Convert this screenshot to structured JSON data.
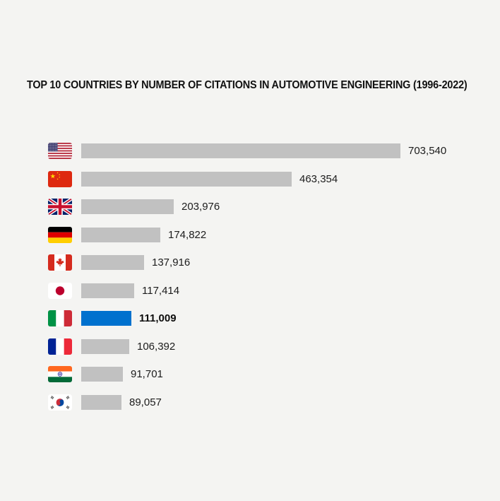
{
  "title": "TOP 10 COUNTRIES BY NUMBER OF CITATIONS IN AUTOMOTIVE ENGINEERING (1996-2022)",
  "colors": {
    "background": "#f4f4f2",
    "bar_default": "#c1c1c1",
    "bar_highlight": "#0071ce",
    "text": "#1c1c1c",
    "text_strong": "#111111"
  },
  "chart_data": {
    "type": "bar",
    "orientation": "horizontal",
    "title": "TOP 10 COUNTRIES BY NUMBER OF CITATIONS IN AUTOMOTIVE ENGINEERING (1996-2022)",
    "categories": [
      "United States",
      "China",
      "United Kingdom",
      "Germany",
      "Canada",
      "Japan",
      "Italy",
      "France",
      "India",
      "South Korea"
    ],
    "values": [
      703540,
      463354,
      203976,
      174822,
      137916,
      117414,
      111009,
      106392,
      91701,
      89057
    ],
    "value_labels": [
      "703,540",
      "463,354",
      "203,976",
      "174,822",
      "137,916",
      "117,414",
      "111,009",
      "106,392",
      "91,701",
      "89,057"
    ],
    "highlighted_index": 6,
    "highlighted_category": "Italy",
    "xlim": [
      0,
      703540
    ],
    "grid": false,
    "legend": false,
    "axis_ticks": false,
    "bar_labels": "values shown at bar ends, flags as category labels"
  }
}
